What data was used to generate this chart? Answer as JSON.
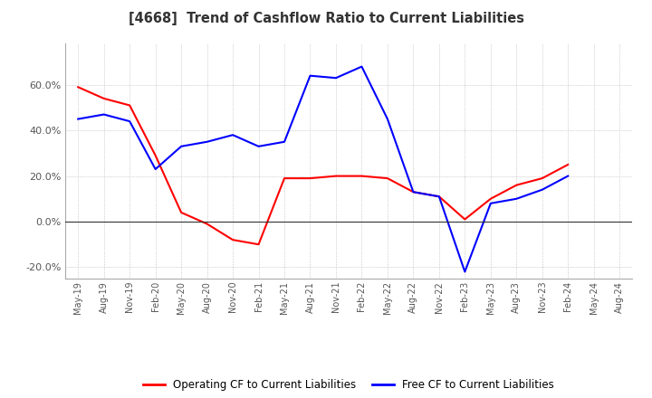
{
  "title": "[4668]  Trend of Cashflow Ratio to Current Liabilities",
  "x_labels": [
    "May-19",
    "Aug-19",
    "Nov-19",
    "Feb-20",
    "May-20",
    "Aug-20",
    "Nov-20",
    "Feb-21",
    "May-21",
    "Aug-21",
    "Nov-21",
    "Feb-22",
    "May-22",
    "Aug-22",
    "Nov-22",
    "Feb-23",
    "May-23",
    "Aug-23",
    "Nov-23",
    "Feb-24",
    "May-24",
    "Aug-24"
  ],
  "operating_cf": [
    0.59,
    0.54,
    0.51,
    0.29,
    0.04,
    -0.01,
    -0.08,
    -0.1,
    0.19,
    0.19,
    0.2,
    0.2,
    0.19,
    0.13,
    0.11,
    0.01,
    0.1,
    0.16,
    0.19,
    0.25,
    null,
    null
  ],
  "free_cf": [
    0.45,
    0.47,
    0.44,
    0.23,
    0.33,
    0.35,
    0.38,
    0.33,
    0.35,
    0.64,
    0.63,
    0.68,
    0.45,
    0.13,
    0.11,
    -0.22,
    0.08,
    0.1,
    0.14,
    0.2,
    null,
    null
  ],
  "operating_color": "#FF0000",
  "free_color": "#0000FF",
  "ylim": [
    -0.25,
    0.78
  ],
  "yticks": [
    -0.2,
    0.0,
    0.2,
    0.4,
    0.6
  ],
  "ytick_labels": [
    "-20.0%",
    "0.0%",
    "20.0%",
    "40.0%",
    "60.0%"
  ],
  "legend_operating": "Operating CF to Current Liabilities",
  "legend_free": "Free CF to Current Liabilities",
  "bg_color": "#FFFFFF",
  "grid_color": "#BBBBBB"
}
